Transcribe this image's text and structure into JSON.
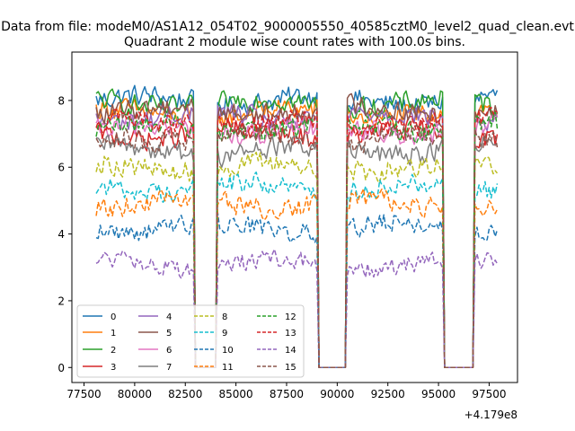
{
  "figure": {
    "suptitle": "Data from file: modeM0/AS1A12_054T02_9000005550_40585cztM0_level2_quad_clean.evt",
    "title": "Quadrant 2 module wise count rates with 100.0s bins.",
    "offset_text": "+4.179e8"
  },
  "chart_data": {
    "type": "line",
    "x_offset": 417900000,
    "bin_seconds": 100,
    "x_start": 78100,
    "x_end": 97900,
    "xlim": [
      76900,
      98900
    ],
    "ylim": [
      -0.45,
      9.45
    ],
    "x_ticks": [
      77500,
      80000,
      82500,
      85000,
      87500,
      90000,
      92500,
      95000,
      97500
    ],
    "x_tick_labels": [
      "77500",
      "80000",
      "82500",
      "85000",
      "87500",
      "90000",
      "92500",
      "95000",
      "97500"
    ],
    "y_ticks": [
      0,
      2,
      4,
      6,
      8
    ],
    "y_tick_labels": [
      "0",
      "2",
      "4",
      "6",
      "8"
    ],
    "grid": false,
    "legend_placement": "lower-left",
    "legend_columns": 4,
    "gaps": [
      [
        82900,
        84100
      ],
      [
        89000,
        90500
      ],
      [
        95200,
        96800
      ]
    ],
    "series": [
      {
        "name": "0",
        "level": 8.0,
        "noise": 0.3,
        "color": "#1f77b4",
        "style": "solid"
      },
      {
        "name": "1",
        "level": 7.6,
        "noise": 0.3,
        "color": "#ff7f0e",
        "style": "solid"
      },
      {
        "name": "2",
        "level": 7.9,
        "noise": 0.3,
        "color": "#2ca02c",
        "style": "solid"
      },
      {
        "name": "3",
        "level": 7.0,
        "noise": 0.3,
        "color": "#d62728",
        "style": "solid"
      },
      {
        "name": "4",
        "level": 7.5,
        "noise": 0.3,
        "color": "#9467bd",
        "style": "solid"
      },
      {
        "name": "5",
        "level": 7.7,
        "noise": 0.3,
        "color": "#8c564b",
        "style": "solid"
      },
      {
        "name": "6",
        "level": 7.1,
        "noise": 0.3,
        "color": "#e377c2",
        "style": "solid"
      },
      {
        "name": "7",
        "level": 6.5,
        "noise": 0.3,
        "color": "#7f7f7f",
        "style": "solid"
      },
      {
        "name": "8",
        "level": 6.0,
        "noise": 0.3,
        "color": "#bcbd22",
        "style": "dashed"
      },
      {
        "name": "9",
        "level": 5.4,
        "noise": 0.28,
        "color": "#17becf",
        "style": "dashed"
      },
      {
        "name": "10",
        "level": 4.2,
        "noise": 0.28,
        "color": "#1f77b4",
        "style": "dashed"
      },
      {
        "name": "11",
        "level": 4.9,
        "noise": 0.28,
        "color": "#ff7f0e",
        "style": "dashed"
      },
      {
        "name": "12",
        "level": 7.2,
        "noise": 0.3,
        "color": "#2ca02c",
        "style": "dashed"
      },
      {
        "name": "13",
        "level": 7.3,
        "noise": 0.3,
        "color": "#d62728",
        "style": "dashed"
      },
      {
        "name": "14",
        "level": 3.1,
        "noise": 0.25,
        "color": "#9467bd",
        "style": "dashed"
      },
      {
        "name": "15",
        "level": 6.9,
        "noise": 0.3,
        "color": "#8c564b",
        "style": "dashed"
      }
    ]
  }
}
